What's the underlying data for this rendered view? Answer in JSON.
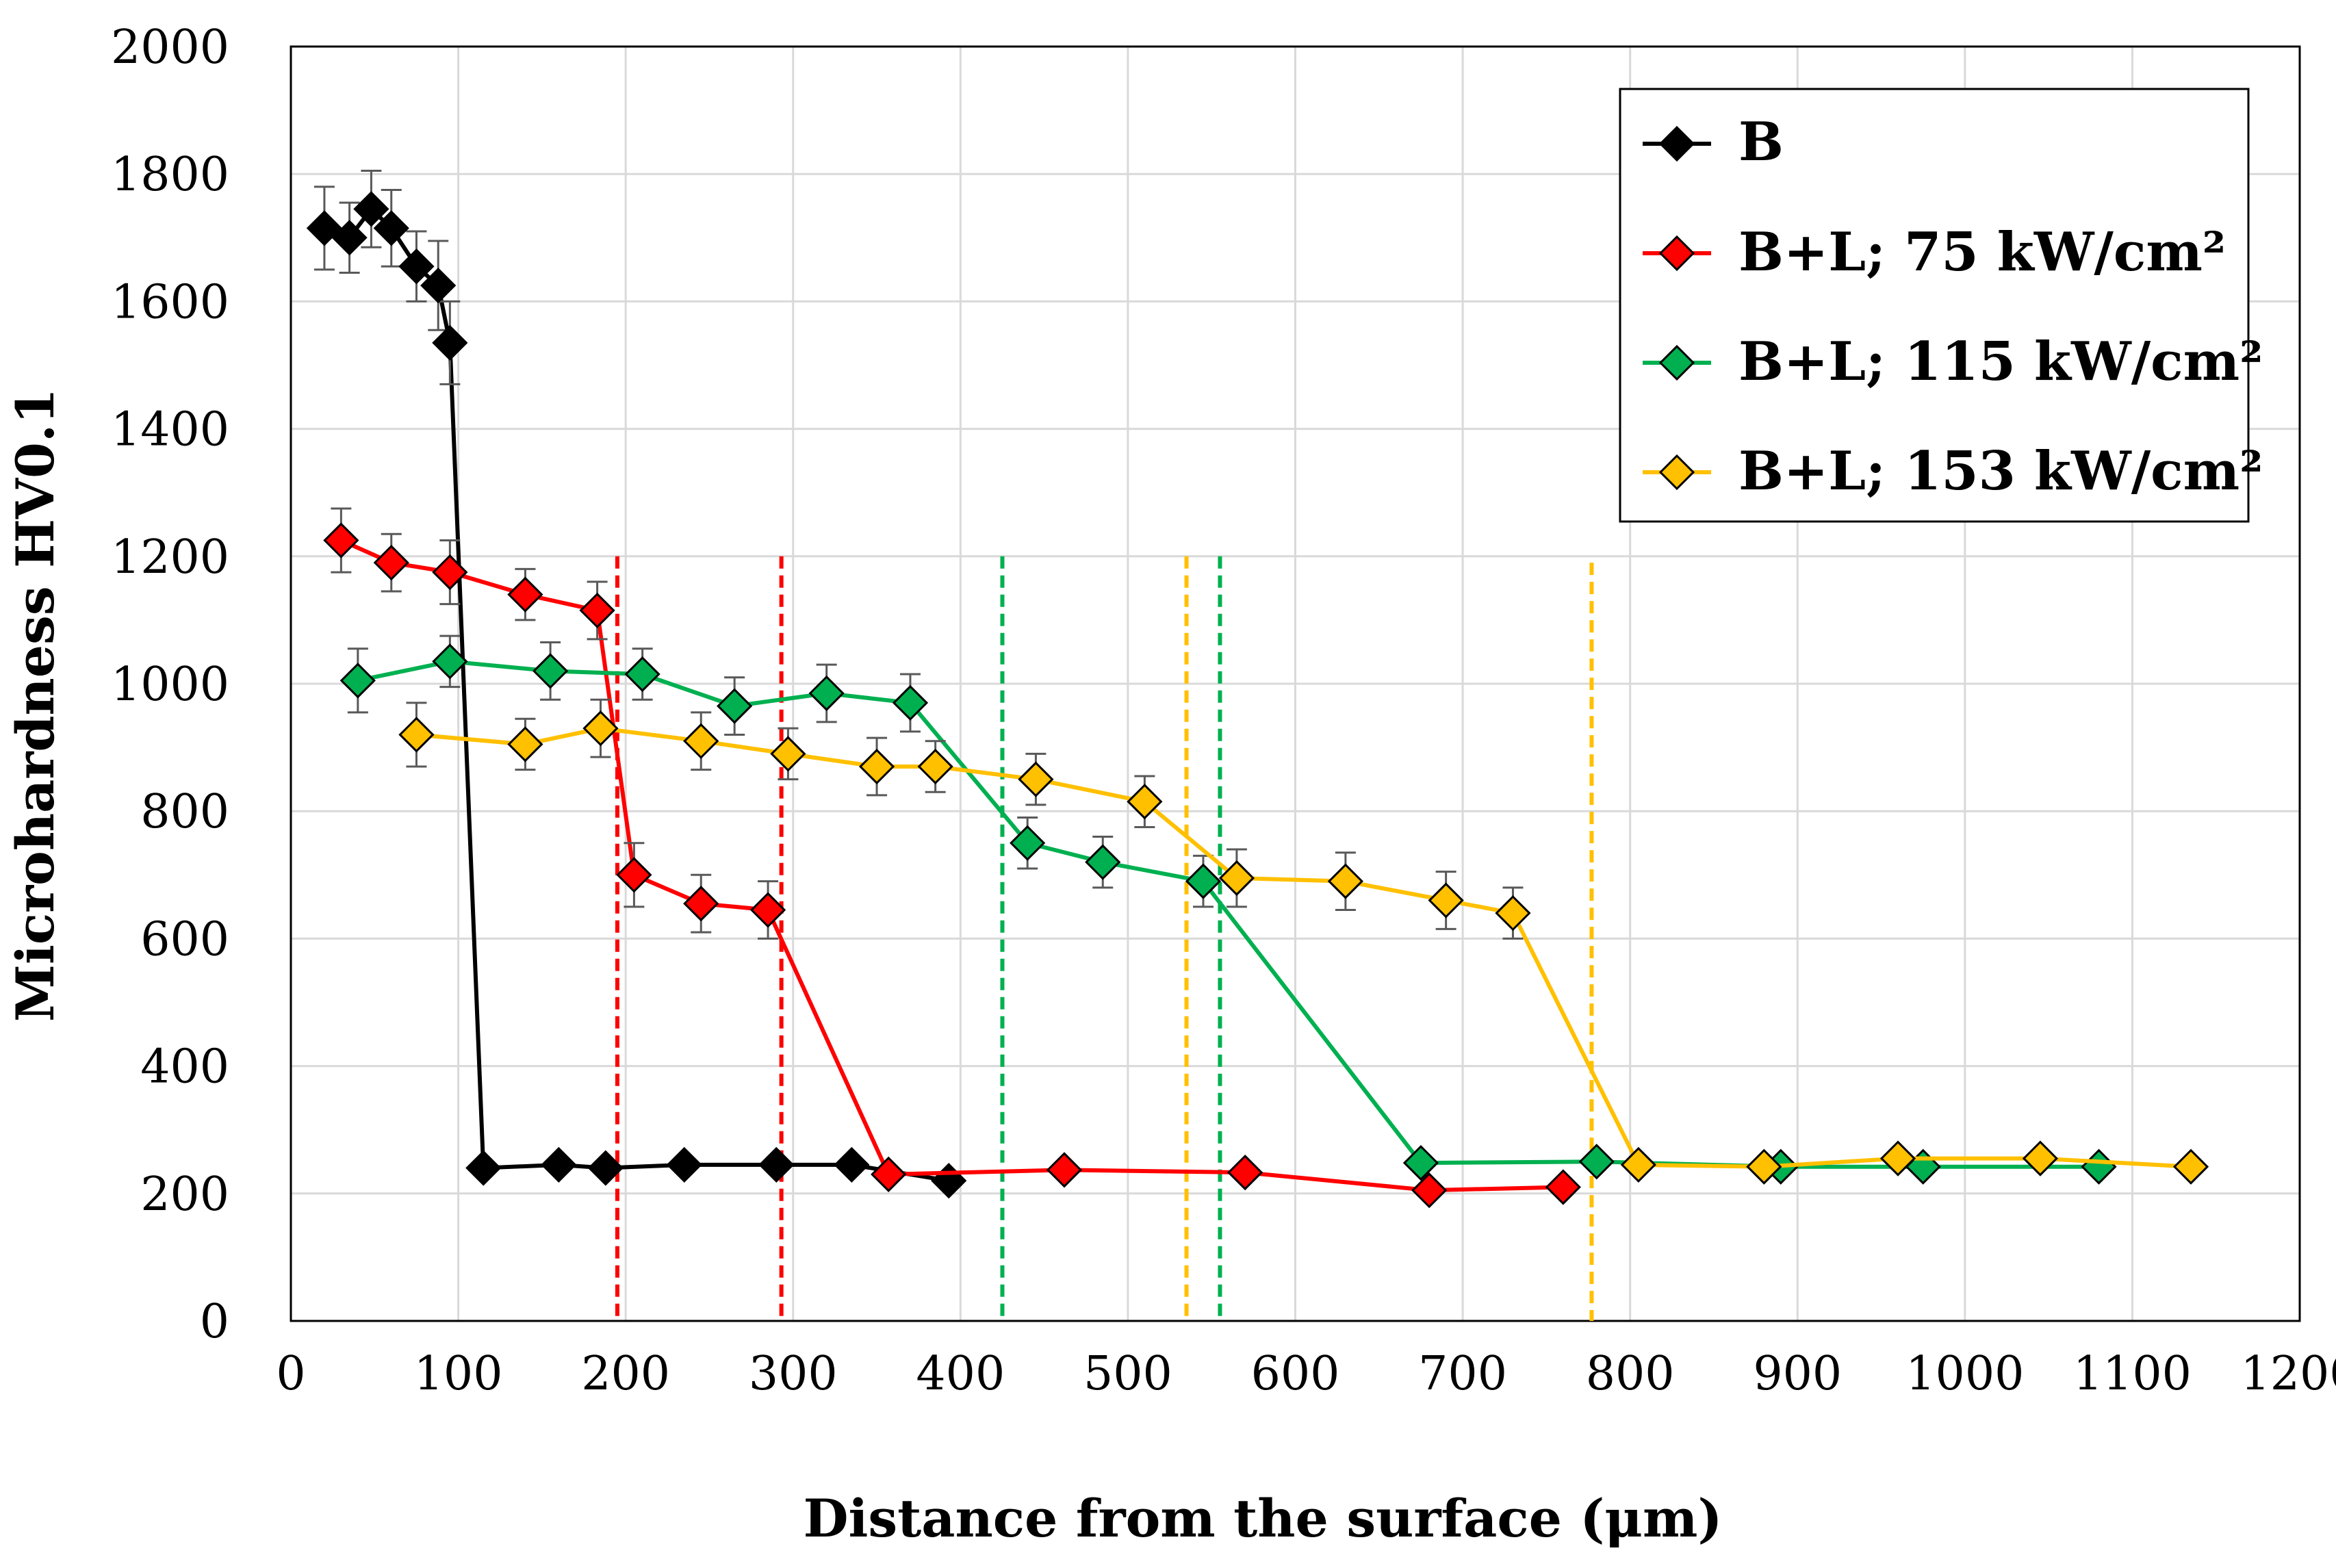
{
  "chart_data": {
    "type": "line",
    "title": "",
    "xlabel": "Distance from the surface (μm)",
    "ylabel": "Microhardness HV0.1",
    "xlim": [
      0,
      1200
    ],
    "ylim": [
      0,
      2000
    ],
    "xticks": [
      "0",
      "100",
      "200",
      "300",
      "400",
      "500",
      "600",
      "700",
      "800",
      "900",
      "1000",
      "1100",
      "1200"
    ],
    "yticks": [
      "0",
      "200",
      "400",
      "600",
      "800",
      "1000",
      "1200",
      "1400",
      "1600",
      "1800",
      "2000"
    ],
    "grid": true,
    "legend_position": "top-right",
    "series": [
      {
        "name": "B",
        "color": "#000000",
        "marker": "diamond",
        "points": [
          {
            "x": 20,
            "y": 1715,
            "err": 65
          },
          {
            "x": 35,
            "y": 1700,
            "err": 55
          },
          {
            "x": 48,
            "y": 1745,
            "err": 60
          },
          {
            "x": 60,
            "y": 1715,
            "err": 60
          },
          {
            "x": 75,
            "y": 1655,
            "err": 55
          },
          {
            "x": 88,
            "y": 1625,
            "err": 70
          },
          {
            "x": 95,
            "y": 1535,
            "err": 65
          },
          {
            "x": 115,
            "y": 240,
            "err": 0
          },
          {
            "x": 160,
            "y": 245,
            "err": 0
          },
          {
            "x": 188,
            "y": 240,
            "err": 0
          },
          {
            "x": 235,
            "y": 245,
            "err": 0
          },
          {
            "x": 290,
            "y": 245,
            "err": 0
          },
          {
            "x": 335,
            "y": 245,
            "err": 0
          },
          {
            "x": 393,
            "y": 220,
            "err": 0
          }
        ]
      },
      {
        "name": "B+L; 75 kW/cm²",
        "color": "#ff0000",
        "marker": "diamond",
        "points": [
          {
            "x": 30,
            "y": 1225,
            "err": 50
          },
          {
            "x": 60,
            "y": 1190,
            "err": 45
          },
          {
            "x": 95,
            "y": 1175,
            "err": 50
          },
          {
            "x": 140,
            "y": 1140,
            "err": 40
          },
          {
            "x": 183,
            "y": 1115,
            "err": 45
          },
          {
            "x": 205,
            "y": 700,
            "err": 50
          },
          {
            "x": 245,
            "y": 655,
            "err": 45
          },
          {
            "x": 285,
            "y": 645,
            "err": 45
          },
          {
            "x": 357,
            "y": 230,
            "err": 0
          },
          {
            "x": 462,
            "y": 237,
            "err": 0
          },
          {
            "x": 570,
            "y": 233,
            "err": 0
          },
          {
            "x": 680,
            "y": 205,
            "err": 0
          },
          {
            "x": 760,
            "y": 210,
            "err": 0
          }
        ]
      },
      {
        "name": "B+L; 115 kW/cm²",
        "color": "#00b050",
        "marker": "diamond",
        "points": [
          {
            "x": 40,
            "y": 1005,
            "err": 50
          },
          {
            "x": 95,
            "y": 1035,
            "err": 40
          },
          {
            "x": 155,
            "y": 1020,
            "err": 45
          },
          {
            "x": 210,
            "y": 1015,
            "err": 40
          },
          {
            "x": 265,
            "y": 965,
            "err": 45
          },
          {
            "x": 320,
            "y": 985,
            "err": 45
          },
          {
            "x": 370,
            "y": 970,
            "err": 45
          },
          {
            "x": 440,
            "y": 750,
            "err": 40
          },
          {
            "x": 485,
            "y": 720,
            "err": 40
          },
          {
            "x": 545,
            "y": 690,
            "err": 40
          },
          {
            "x": 675,
            "y": 248,
            "err": 0
          },
          {
            "x": 780,
            "y": 250,
            "err": 0
          },
          {
            "x": 890,
            "y": 242,
            "err": 0
          },
          {
            "x": 975,
            "y": 242,
            "err": 0
          },
          {
            "x": 1080,
            "y": 242,
            "err": 0
          }
        ]
      },
      {
        "name": "B+L; 153 kW/cm²",
        "color": "#ffc000",
        "marker": "diamond",
        "points": [
          {
            "x": 75,
            "y": 920,
            "err": 50
          },
          {
            "x": 140,
            "y": 905,
            "err": 40
          },
          {
            "x": 185,
            "y": 930,
            "err": 45
          },
          {
            "x": 245,
            "y": 910,
            "err": 45
          },
          {
            "x": 297,
            "y": 890,
            "err": 40
          },
          {
            "x": 350,
            "y": 870,
            "err": 45
          },
          {
            "x": 385,
            "y": 870,
            "err": 40
          },
          {
            "x": 445,
            "y": 850,
            "err": 40
          },
          {
            "x": 510,
            "y": 815,
            "err": 40
          },
          {
            "x": 565,
            "y": 695,
            "err": 45
          },
          {
            "x": 630,
            "y": 690,
            "err": 45
          },
          {
            "x": 690,
            "y": 660,
            "err": 45
          },
          {
            "x": 730,
            "y": 640,
            "err": 40
          },
          {
            "x": 805,
            "y": 245,
            "err": 0
          },
          {
            "x": 880,
            "y": 242,
            "err": 0
          },
          {
            "x": 960,
            "y": 255,
            "err": 0
          },
          {
            "x": 1045,
            "y": 255,
            "err": 0
          },
          {
            "x": 1135,
            "y": 242,
            "err": 0
          }
        ]
      }
    ],
    "reference_lines": [
      {
        "x": 195,
        "color": "#ff0000",
        "y_top": 1200
      },
      {
        "x": 293,
        "color": "#ff0000",
        "y_top": 1200
      },
      {
        "x": 425,
        "color": "#00b050",
        "y_top": 1200
      },
      {
        "x": 555,
        "color": "#00b050",
        "y_top": 1200
      },
      {
        "x": 535,
        "color": "#ffc000",
        "y_top": 1200
      },
      {
        "x": 777,
        "color": "#ffc000",
        "y_top": 1190
      }
    ]
  }
}
